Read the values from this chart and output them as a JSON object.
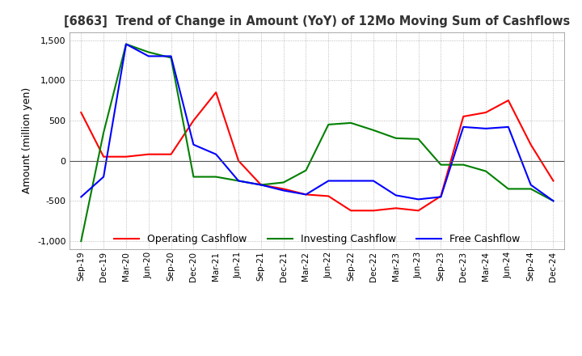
{
  "title": "[6863]  Trend of Change in Amount (YoY) of 12Mo Moving Sum of Cashflows",
  "ylabel": "Amount (million yen)",
  "background_color": "#ffffff",
  "grid_color": "#aaaaaa",
  "x_labels": [
    "Sep-19",
    "Dec-19",
    "Mar-20",
    "Jun-20",
    "Sep-20",
    "Dec-20",
    "Mar-21",
    "Jun-21",
    "Sep-21",
    "Dec-21",
    "Mar-22",
    "Jun-22",
    "Sep-22",
    "Dec-22",
    "Mar-23",
    "Jun-23",
    "Sep-23",
    "Dec-23",
    "Mar-24",
    "Jun-24",
    "Sep-24",
    "Dec-24"
  ],
  "operating_cashflow": [
    600,
    50,
    50,
    80,
    80,
    500,
    850,
    0,
    -300,
    -350,
    -420,
    -440,
    -620,
    -620,
    -590,
    -620,
    -440,
    550,
    600,
    750,
    200,
    -250
  ],
  "investing_cashflow": [
    -1000,
    350,
    1450,
    1350,
    1280,
    -200,
    -200,
    -250,
    -300,
    -270,
    -120,
    450,
    470,
    380,
    280,
    270,
    -50,
    -50,
    -130,
    -350,
    -350,
    -500
  ],
  "free_cashflow": [
    -450,
    -200,
    1450,
    1300,
    1300,
    200,
    80,
    -250,
    -300,
    -370,
    -420,
    -250,
    -250,
    -250,
    -430,
    -480,
    -450,
    420,
    400,
    420,
    -300,
    -500
  ],
  "ylim": [
    -1100,
    1600
  ],
  "yticks": [
    -1000,
    -500,
    0,
    500,
    1000,
    1500
  ],
  "op_color": "#ff0000",
  "inv_color": "#008000",
  "free_color": "#0000ff"
}
